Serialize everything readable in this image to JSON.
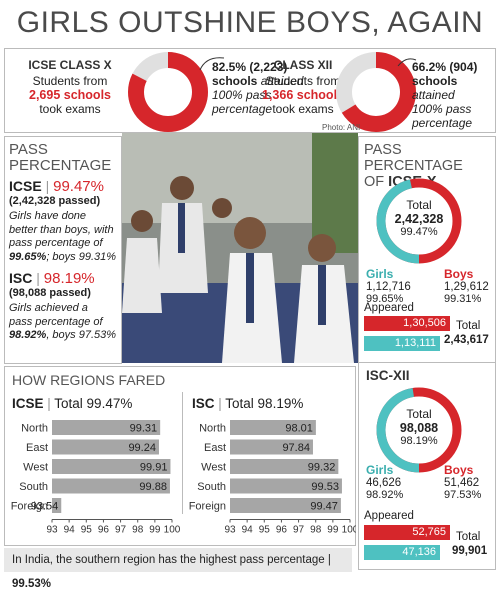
{
  "title": "GIRLS OUTSHINE BOYS, AGAIN",
  "top": {
    "icse": {
      "heading": "ICSE CLASS X",
      "line1": "Students from",
      "schools": "2,695 schools",
      "line3": "took exams",
      "pct_line": "82.5% (2,223)",
      "attained1": "schools",
      "attained2": "attained",
      "attained3": "100% pass",
      "attained4": "percentage",
      "fraction": 0.825
    },
    "isc": {
      "heading": "CLASS XII",
      "line1": "Students from",
      "schools": "1,366 schools",
      "line3": "took exams",
      "pct_line": "66.2% (904)",
      "attained1": "schools",
      "attained2": "attained",
      "attained3": "100% pass",
      "attained4": "percentage",
      "fraction": 0.662
    },
    "credit": "Photo: ANI"
  },
  "pass": {
    "heading1": "PASS",
    "heading2": "PERCENTAGE",
    "icse_label": "ICSE",
    "icse_pct": "99.47%",
    "icse_passed": "(2,42,328 passed)",
    "icse_note1": "Girls have done",
    "icse_note2": "better than boys, with",
    "icse_note3": "pass percentage of",
    "icse_note4a": "99.65%",
    "icse_note4b": "; boys 99.31%",
    "isc_label": "ISC",
    "isc_pct": "98.19%",
    "isc_passed": "(98,088 passed)",
    "isc_note1": "Girls achieved a",
    "isc_note2": "pass percentage of",
    "isc_note3a": "98.92%",
    "isc_note3b": ", boys 97.53%"
  },
  "right": {
    "heading1": "PASS PERCENTAGE",
    "heading2a": "OF ",
    "heading2b": "ICSE-X",
    "icse": {
      "total_label": "Total",
      "total": "2,42,328",
      "pct": "99.47%",
      "girls_label": "Girls",
      "girls": "1,12,716",
      "girls_pct": "99.65%",
      "boys_label": "Boys",
      "boys": "1,29,612",
      "boys_pct": "99.31%",
      "appeared_label": "Appeared",
      "boys_appeared": "1,30,506",
      "girls_appeared": "1,13,111",
      "appeared_total_label": "Total",
      "appeared_total": "2,43,617",
      "girls_fraction": 0.465
    },
    "isc_heading": "ISC-XII",
    "isc": {
      "total_label": "Total",
      "total": "98,088",
      "pct": "98.19%",
      "girls_label": "Girls",
      "girls": "46,626",
      "girls_pct": "98.92%",
      "boys_label": "Boys",
      "boys": "51,462",
      "boys_pct": "97.53%",
      "appeared_label": "Appeared",
      "boys_appeared": "52,765",
      "girls_appeared": "47,136",
      "appeared_total_label": "Total",
      "appeared_total": "99,901",
      "girls_fraction": 0.475
    }
  },
  "colors": {
    "red": "#d6262b",
    "teal": "#4ec1c1",
    "bar": "#a6a6a6",
    "footer": "#e8e8e8"
  },
  "regions": {
    "heading": "HOW REGIONS FARED",
    "footer_text": "In India, the southern region has the highest pass percentage | ",
    "footer_value": "99.53%"
  },
  "chart_data": [
    {
      "type": "bar",
      "title": "ICSE | Total 99.47%",
      "title_a": "ICSE",
      "title_b": "Total 99.47%",
      "categories": [
        "North",
        "East",
        "West",
        "South",
        "Foreign"
      ],
      "values": [
        99.31,
        99.24,
        99.91,
        99.88,
        93.54
      ],
      "xlim": [
        93,
        100
      ],
      "ticks": [
        "93",
        "94",
        "95",
        "96",
        "97",
        "98",
        "99",
        "100"
      ]
    },
    {
      "type": "bar",
      "title": "ISC | Total 98.19%",
      "title_a": "ISC",
      "title_b": "Total 98.19%",
      "categories": [
        "North",
        "East",
        "West",
        "South",
        "Foreign"
      ],
      "values": [
        98.01,
        97.84,
        99.32,
        99.53,
        99.47
      ],
      "xlim": [
        93,
        100
      ],
      "ticks": [
        "93",
        "94",
        "95",
        "96",
        "97",
        "98",
        "99",
        "100"
      ]
    }
  ]
}
